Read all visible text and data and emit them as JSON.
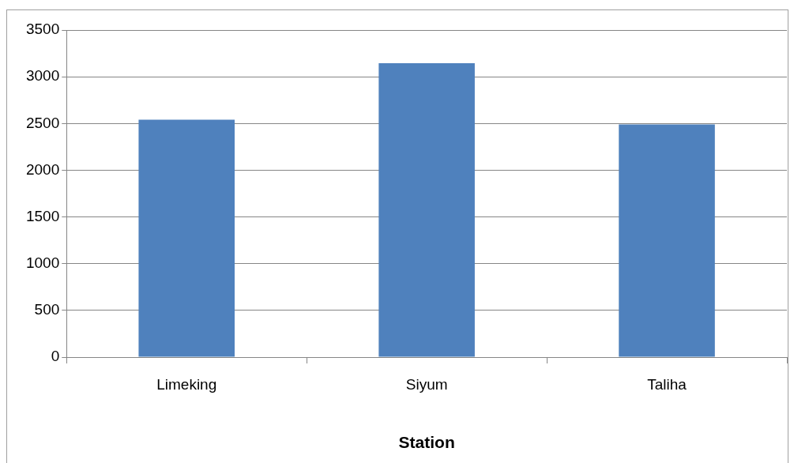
{
  "chart_data": {
    "type": "bar",
    "xlabel": "Station",
    "categories": [
      "Limeking",
      "Siyum",
      "Taliha"
    ],
    "values": [
      2540,
      3145,
      2490
    ],
    "color": "#4f81bd",
    "ylim": [
      0,
      3500
    ],
    "yticks": [
      0,
      500,
      1000,
      1500,
      2000,
      2500,
      3000,
      3500
    ],
    "grid": "y",
    "legend": false
  }
}
